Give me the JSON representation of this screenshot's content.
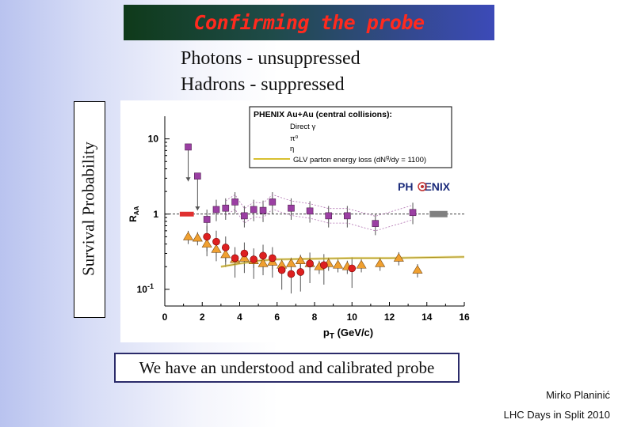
{
  "slide": {
    "title": "Confirming the probe",
    "line1": "Photons -  unsuppressed",
    "line2": "Hadrons - suppressed",
    "side_label": "Survival Probability",
    "callout": "We have an understood and calibrated probe",
    "author": "Mirko Planinić",
    "event": "LHC Days in Split 2010"
  },
  "colors": {
    "title_text": "#ff2a1e",
    "direct_gamma": "#9b3fa3",
    "pi0": "#f0a030",
    "eta": "#dd2020",
    "glv": "#d8c030",
    "syst_left": "#e03030",
    "syst_right": "#808080"
  },
  "chart_data": {
    "type": "scatter",
    "xlabel_main": "p",
    "xlabel_sub": "T",
    "xlabel_unit": " (GeV/c)",
    "ylabel_main": "R",
    "ylabel_sub": "AA",
    "y_scale": "log",
    "xlim": [
      0,
      16
    ],
    "ylim": [
      0.06,
      20
    ],
    "x_ticks": [
      "0",
      "2",
      "4",
      "6",
      "8",
      "10",
      "12",
      "14",
      "16"
    ],
    "y_ticks": [
      {
        "value": 10,
        "base": "10",
        "exp": ""
      },
      {
        "value": 1,
        "base": "1",
        "exp": ""
      },
      {
        "value": 0.1,
        "base": "10",
        "exp": "-1"
      }
    ],
    "legend_title": "PHENIX Au+Au (central collisions):",
    "legend_placement": "top-right",
    "logo": {
      "left": "PH",
      "right": "ENIX"
    },
    "series": [
      {
        "name": "Direct γ",
        "marker": "square",
        "x": [
          1.25,
          1.75,
          2.25,
          2.75,
          3.25,
          3.75,
          4.25,
          4.75,
          5.25,
          5.75,
          6.75,
          7.75,
          8.75,
          9.75,
          11.25,
          13.25
        ],
        "y": [
          7.8,
          3.2,
          0.85,
          1.15,
          1.2,
          1.45,
          0.95,
          1.15,
          1.12,
          1.45,
          1.2,
          1.1,
          0.95,
          0.95,
          0.75,
          1.05
        ]
      },
      {
        "name": "π⁰",
        "marker": "triangle",
        "x": [
          1.25,
          1.75,
          2.25,
          2.75,
          3.25,
          3.75,
          4.25,
          4.75,
          5.25,
          5.75,
          6.25,
          6.75,
          7.25,
          7.75,
          8.25,
          8.75,
          9.25,
          9.75,
          10.5,
          11.5,
          12.5,
          13.5
        ],
        "y": [
          0.5,
          0.48,
          0.4,
          0.34,
          0.29,
          0.25,
          0.26,
          0.24,
          0.22,
          0.23,
          0.21,
          0.22,
          0.24,
          0.22,
          0.2,
          0.22,
          0.21,
          0.2,
          0.21,
          0.22,
          0.26,
          0.18
        ]
      },
      {
        "name": "η",
        "marker": "circle",
        "x": [
          2.25,
          2.75,
          3.25,
          3.75,
          4.25,
          4.75,
          5.25,
          5.75,
          6.25,
          6.75,
          7.25,
          7.75,
          8.5,
          10.0
        ],
        "y": [
          0.5,
          0.43,
          0.36,
          0.26,
          0.3,
          0.25,
          0.28,
          0.26,
          0.18,
          0.16,
          0.17,
          0.22,
          0.21,
          0.19
        ]
      },
      {
        "name": "GLV parton energy loss (dN",
        "name_sup": "g",
        "name_tail": "/dy = 1100)",
        "marker": "line",
        "x": [
          3,
          4,
          5,
          6,
          8,
          10,
          12,
          14,
          16
        ],
        "y": [
          0.2,
          0.22,
          0.24,
          0.25,
          0.255,
          0.26,
          0.26,
          0.265,
          0.27
        ]
      }
    ]
  }
}
